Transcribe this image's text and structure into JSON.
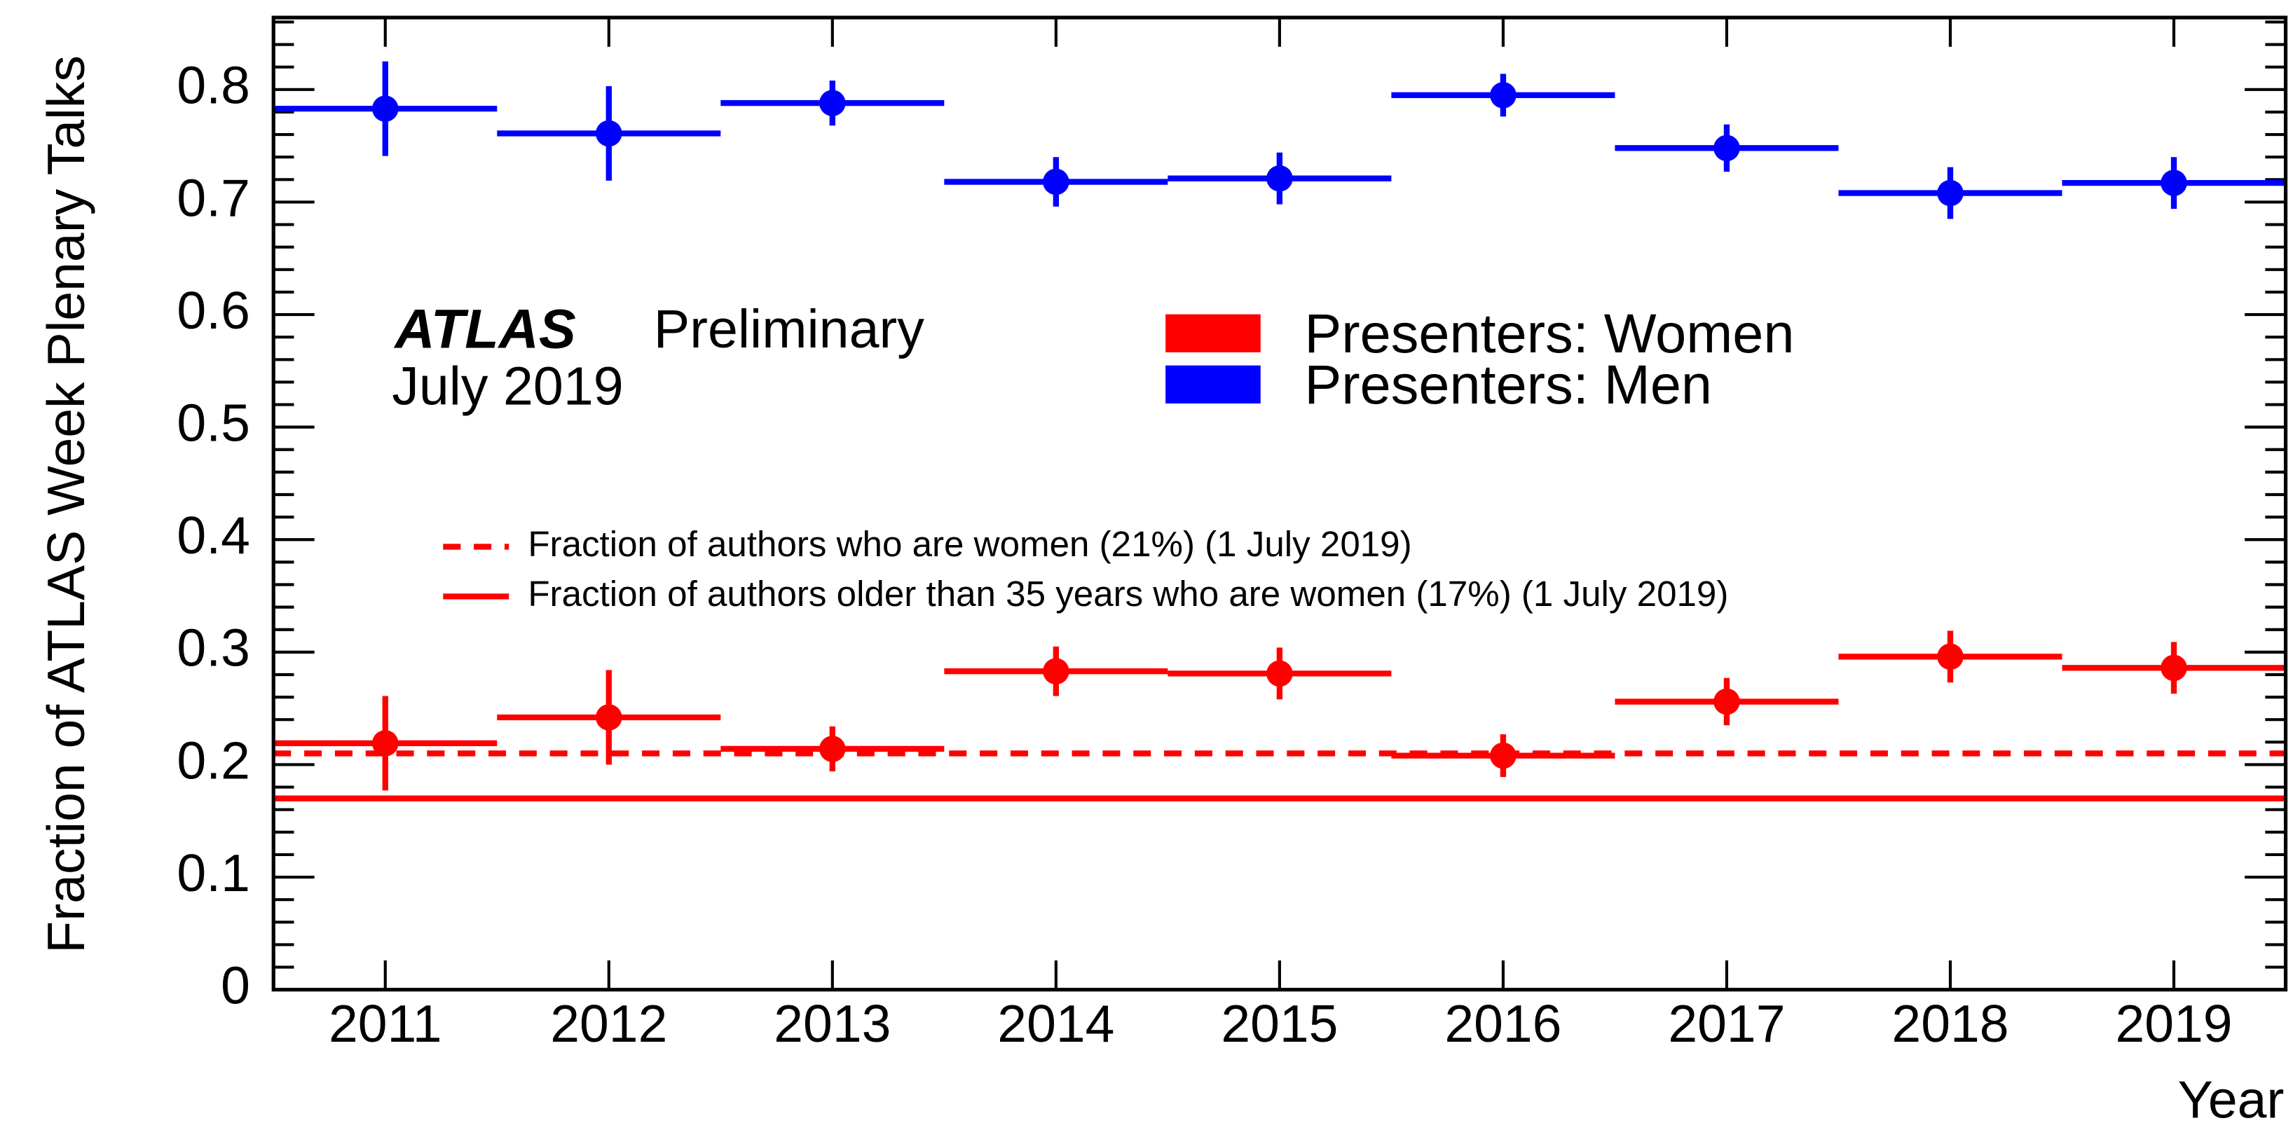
{
  "chart_data": {
    "type": "errorbar",
    "y_label": "Fraction of ATLAS Week Plenary Talks",
    "x_label": "Year",
    "annotations": [
      "ATLAS",
      "Preliminary",
      "July 2019"
    ],
    "x": [
      2011,
      2012,
      2013,
      2014,
      2015,
      2016,
      2017,
      2018,
      2019
    ],
    "xlim": [
      2010.5,
      2019.5
    ],
    "xticks": [
      2011,
      2012,
      2013,
      2014,
      2015,
      2016,
      2017,
      2018,
      2019
    ],
    "ylim": [
      0,
      0.864
    ],
    "yticks": [
      0,
      0.1,
      0.2,
      0.3,
      0.4,
      0.5,
      0.6,
      0.7,
      0.8
    ],
    "series": [
      {
        "name": "Presenters: Women",
        "color": "#ff0000",
        "values": [
          0.219,
          0.242,
          0.214,
          0.283,
          0.281,
          0.208,
          0.256,
          0.296,
          0.286
        ],
        "errors": [
          0.042,
          0.042,
          0.02,
          0.022,
          0.023,
          0.019,
          0.021,
          0.023,
          0.023
        ]
      },
      {
        "name": "Presenters: Men",
        "color": "#0000ff",
        "values": [
          0.783,
          0.761,
          0.788,
          0.718,
          0.721,
          0.795,
          0.748,
          0.708,
          0.717
        ],
        "errors": [
          0.042,
          0.042,
          0.02,
          0.022,
          0.023,
          0.019,
          0.021,
          0.023,
          0.023
        ]
      }
    ],
    "reference_lines": [
      {
        "label": "Fraction of authors who are women (21%) (1 July 2019)",
        "value": 0.21,
        "color": "#ff0000",
        "style": "dashed"
      },
      {
        "label": "Fraction of authors older than 35 years who are women (17%) (1 July 2019)",
        "value": 0.17,
        "color": "#ff0000",
        "style": "solid"
      }
    ]
  }
}
